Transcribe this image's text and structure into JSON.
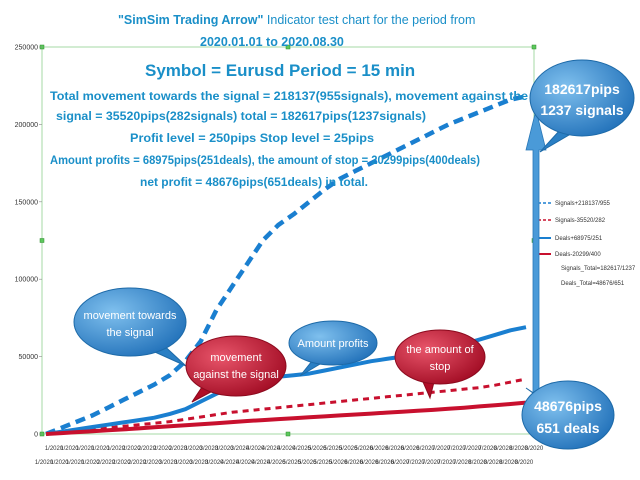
{
  "chart_data": {
    "type": "line",
    "title_line1_bold": "\"SimSim Trading Arrow\"",
    "title_line1_rest": " Indicator test chart for the period from",
    "title_line2": "2020.01.01 to 2020.08.30",
    "symbol_line": "Symbol = Eurusd Period = 15 min",
    "info_lines": [
      "Total movement towards the signal = 218137(955signals), movement against the",
      "signal = 35520pips(282signals) total = 182617pips(1237signals)",
      "Profit level = 250pips Stop level = 25pips",
      "Amount profits = 68975pips(251deals), the amount of stop = 20299pips(400deals)",
      "net profit = 48676pips(651deals) in total."
    ],
    "ylim": [
      0,
      250000
    ],
    "y_ticks": [
      0,
      50000,
      100000,
      150000,
      200000,
      250000
    ],
    "x_row1": [
      "1/2020",
      "1/2020",
      "1/2020",
      "1/2020",
      "1/2020",
      "2/2020",
      "2/2020",
      "2/2020",
      "2/2020",
      "3/2020",
      "3/2020",
      "3/2020",
      "3/2020",
      "4/2020",
      "4/2020",
      "4/2020",
      "4/2020",
      "5/2020",
      "5/2020",
      "5/2020",
      "5/2020",
      "6/2020",
      "6/2020",
      "6/2020",
      "6/2020",
      "7/2020",
      "7/2020",
      "7/2020",
      "7/2020",
      "8/2020",
      "8/2020",
      "8/2020"
    ],
    "x_row2": [
      "1/2020",
      "1/2020",
      "1/2020",
      "1/2020",
      "2/2020",
      "2/2020",
      "2/2020",
      "2/2020",
      "3/2020",
      "3/2020",
      "3/2020",
      "3/2020",
      "4/2020",
      "4/2020",
      "4/2020",
      "4/2020",
      "5/2020",
      "5/2020",
      "5/2020",
      "5/2020",
      "6/2020",
      "6/2020",
      "6/2020",
      "6/2020",
      "7/2020",
      "7/2020",
      "7/2020",
      "7/2020",
      "8/2020",
      "8/2020",
      "8/2020",
      "8/2020"
    ],
    "series": [
      {
        "name": "Signals+218137/955",
        "color": "#1a7fd0",
        "style": "dashed",
        "values": [
          0,
          4000,
          8000,
          12000,
          17000,
          22000,
          27000,
          32000,
          38000,
          47000,
          60000,
          80000,
          95000,
          110000,
          125000,
          135000,
          142000,
          150000,
          158000,
          165000,
          170000,
          175000,
          180000,
          185000,
          190000,
          195000,
          200000,
          204000,
          208000,
          212000,
          216000,
          218137
        ]
      },
      {
        "name": "Signals-35520/282",
        "color": "#c8102e",
        "style": "dashed",
        "values": [
          0,
          1000,
          2000,
          3000,
          4000,
          5000,
          6000,
          7000,
          8000,
          9500,
          11000,
          12500,
          14000,
          15000,
          16000,
          17000,
          18000,
          19000,
          20000,
          21000,
          22000,
          23000,
          24000,
          25000,
          26000,
          27000,
          28000,
          29000,
          30000,
          31500,
          33500,
          35520
        ]
      },
      {
        "name": "Deals+68975/251",
        "color": "#1a7fd0",
        "style": "solid",
        "values": [
          0,
          1500,
          3000,
          4500,
          6000,
          7500,
          9000,
          10500,
          13000,
          16000,
          21000,
          26000,
          30000,
          33000,
          35000,
          37000,
          38000,
          39000,
          41000,
          43000,
          45000,
          47000,
          48500,
          50000,
          52000,
          54000,
          56000,
          58000,
          61000,
          64000,
          67000,
          68975
        ]
      },
      {
        "name": "Deals-20299/400",
        "color": "#c8102e",
        "style": "solid",
        "values": [
          0,
          600,
          1200,
          1800,
          2400,
          3000,
          3600,
          4300,
          5000,
          5600,
          6300,
          7000,
          7700,
          8400,
          9000,
          9600,
          10200,
          10800,
          11400,
          12000,
          12600,
          13200,
          13800,
          14400,
          15000,
          15600,
          16300,
          17000,
          17800,
          18600,
          19400,
          20299
        ]
      }
    ],
    "legend_extra": [
      "Signals_Total=182617/1237",
      "Deals_Total=48676/651"
    ],
    "legend_position": "right",
    "callouts": {
      "towards": [
        "movement towards",
        "the signal"
      ],
      "against": [
        "movement",
        "against the signal"
      ],
      "amount_profits": "Amount profits",
      "stop": [
        "the amount of",
        "stop"
      ],
      "total_signals": [
        "182617pips",
        "1237 signals"
      ],
      "total_deals": [
        "48676pips",
        "651 deals"
      ]
    },
    "colors": {
      "accent_blue": "#1a8fc8",
      "bubble_blue": "#3b8fd0",
      "bubble_red": "#c8102e",
      "arrow": "#4a9ad8"
    }
  }
}
